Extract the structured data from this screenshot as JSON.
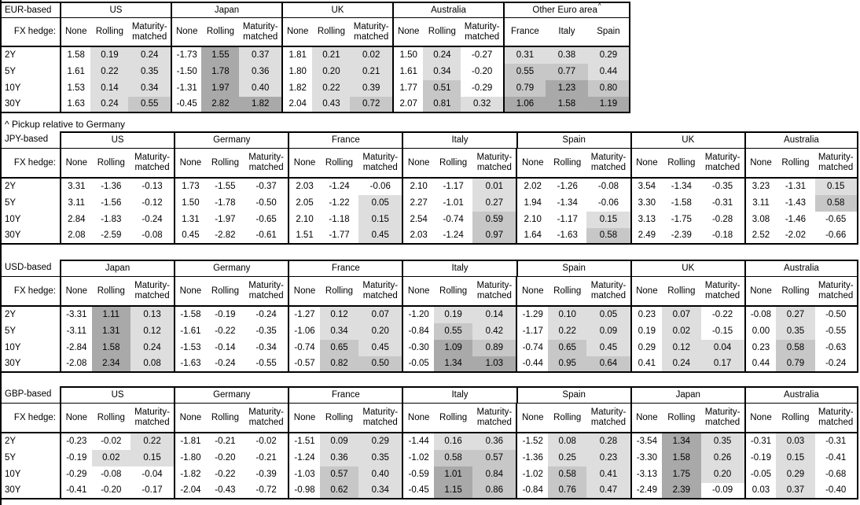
{
  "page": {
    "note": "^ Pickup relative to Germany"
  },
  "labels": {
    "fx_hedge": "FX hedge:",
    "hedge_types": [
      "None",
      "Rolling",
      "Maturity-matched"
    ],
    "tenors": [
      "2Y",
      "5Y",
      "10Y",
      "30Y"
    ]
  },
  "colors": {
    "background": "#ffffff",
    "border": "#000000",
    "shade_light": "#dedede",
    "shade_medium": "#c7c7c7",
    "shade_dark": "#a9a9a9"
  },
  "tables": [
    {
      "base": "EUR-based",
      "groups": [
        {
          "name": "US",
          "rows": [
            [
              "1.58",
              "0.19",
              "0.24"
            ],
            [
              "1.61",
              "0.22",
              "0.35"
            ],
            [
              "1.53",
              "0.14",
              "0.34"
            ],
            [
              "1.63",
              "0.24",
              "0.55"
            ]
          ]
        },
        {
          "name": "Japan",
          "rows": [
            [
              "-1.73",
              "1.55",
              "0.37"
            ],
            [
              "-1.50",
              "1.78",
              "0.36"
            ],
            [
              "-1.31",
              "1.97",
              "0.40"
            ],
            [
              "-0.45",
              "2.82",
              "1.82"
            ]
          ]
        },
        {
          "name": "UK",
          "rows": [
            [
              "1.81",
              "0.21",
              "0.02"
            ],
            [
              "1.80",
              "0.20",
              "0.21"
            ],
            [
              "1.82",
              "0.22",
              "0.39"
            ],
            [
              "2.04",
              "0.43",
              "0.72"
            ]
          ]
        },
        {
          "name": "Australia",
          "rows": [
            [
              "1.50",
              "0.24",
              "-0.27"
            ],
            [
              "1.61",
              "0.34",
              "-0.20"
            ],
            [
              "1.77",
              "0.51",
              "-0.29"
            ],
            [
              "2.07",
              "0.81",
              "0.32"
            ]
          ]
        },
        {
          "name": "Other Euro area",
          "sup": "^",
          "subheaders": [
            "France",
            "Italy",
            "Spain"
          ],
          "shade_all": true,
          "rows": [
            [
              "0.31",
              "0.38",
              "0.29"
            ],
            [
              "0.55",
              "0.77",
              "0.44"
            ],
            [
              "0.79",
              "1.23",
              "0.80"
            ],
            [
              "1.06",
              "1.58",
              "1.19"
            ]
          ]
        }
      ]
    },
    {
      "base": "JPY-based",
      "groups": [
        {
          "name": "US",
          "rows": [
            [
              "3.31",
              "-1.36",
              "-0.13"
            ],
            [
              "3.11",
              "-1.56",
              "-0.12"
            ],
            [
              "2.84",
              "-1.83",
              "-0.24"
            ],
            [
              "2.08",
              "-2.59",
              "-0.08"
            ]
          ]
        },
        {
          "name": "Germany",
          "rows": [
            [
              "1.73",
              "-1.55",
              "-0.37"
            ],
            [
              "1.50",
              "-1.78",
              "-0.50"
            ],
            [
              "1.31",
              "-1.97",
              "-0.65"
            ],
            [
              "0.45",
              "-2.82",
              "-0.61"
            ]
          ]
        },
        {
          "name": "France",
          "rows": [
            [
              "2.03",
              "-1.24",
              "-0.06"
            ],
            [
              "2.05",
              "-1.22",
              "0.05"
            ],
            [
              "2.10",
              "-1.18",
              "0.15"
            ],
            [
              "1.51",
              "-1.77",
              "0.45"
            ]
          ]
        },
        {
          "name": "Italy",
          "rows": [
            [
              "2.10",
              "-1.17",
              "0.01"
            ],
            [
              "2.27",
              "-1.01",
              "0.27"
            ],
            [
              "2.54",
              "-0.74",
              "0.59"
            ],
            [
              "2.03",
              "-1.24",
              "0.97"
            ]
          ]
        },
        {
          "name": "Spain",
          "rows": [
            [
              "2.02",
              "-1.26",
              "-0.08"
            ],
            [
              "1.94",
              "-1.34",
              "-0.06"
            ],
            [
              "2.10",
              "-1.17",
              "0.15"
            ],
            [
              "1.64",
              "-1.63",
              "0.58"
            ]
          ]
        },
        {
          "name": "UK",
          "rows": [
            [
              "3.54",
              "-1.34",
              "-0.35"
            ],
            [
              "3.30",
              "-1.58",
              "-0.31"
            ],
            [
              "3.13",
              "-1.75",
              "-0.28"
            ],
            [
              "2.49",
              "-2.39",
              "-0.18"
            ]
          ]
        },
        {
          "name": "Australia",
          "rows": [
            [
              "3.23",
              "-1.31",
              "0.15"
            ],
            [
              "3.11",
              "-1.43",
              "0.58"
            ],
            [
              "3.08",
              "-1.46",
              "-0.65"
            ],
            [
              "2.52",
              "-2.02",
              "-0.66"
            ]
          ]
        }
      ]
    },
    {
      "base": "USD-based",
      "groups": [
        {
          "name": "Japan",
          "rows": [
            [
              "-3.31",
              "1.11",
              "0.13"
            ],
            [
              "-3.11",
              "1.31",
              "0.12"
            ],
            [
              "-2.84",
              "1.58",
              "0.24"
            ],
            [
              "-2.08",
              "2.34",
              "0.08"
            ]
          ]
        },
        {
          "name": "Germany",
          "rows": [
            [
              "-1.58",
              "-0.19",
              "-0.24"
            ],
            [
              "-1.61",
              "-0.22",
              "-0.35"
            ],
            [
              "-1.53",
              "-0.14",
              "-0.34"
            ],
            [
              "-1.63",
              "-0.24",
              "-0.55"
            ]
          ]
        },
        {
          "name": "France",
          "rows": [
            [
              "-1.27",
              "0.12",
              "0.07"
            ],
            [
              "-1.06",
              "0.34",
              "0.20"
            ],
            [
              "-0.74",
              "0.65",
              "0.45"
            ],
            [
              "-0.57",
              "0.82",
              "0.50"
            ]
          ]
        },
        {
          "name": "Italy",
          "rows": [
            [
              "-1.20",
              "0.19",
              "0.14"
            ],
            [
              "-0.84",
              "0.55",
              "0.42"
            ],
            [
              "-0.30",
              "1.09",
              "0.89"
            ],
            [
              "-0.05",
              "1.34",
              "1.03"
            ]
          ]
        },
        {
          "name": "Spain",
          "rows": [
            [
              "-1.29",
              "0.10",
              "0.05"
            ],
            [
              "-1.17",
              "0.22",
              "0.09"
            ],
            [
              "-0.74",
              "0.65",
              "0.45"
            ],
            [
              "-0.44",
              "0.95",
              "0.64"
            ]
          ]
        },
        {
          "name": "UK",
          "rows": [
            [
              "0.23",
              "0.07",
              "-0.22"
            ],
            [
              "0.19",
              "0.02",
              "-0.15"
            ],
            [
              "0.29",
              "0.12",
              "0.04"
            ],
            [
              "0.41",
              "0.24",
              "0.17"
            ]
          ]
        },
        {
          "name": "Australia",
          "rows": [
            [
              "-0.08",
              "0.27",
              "-0.50"
            ],
            [
              "0.00",
              "0.35",
              "-0.55"
            ],
            [
              "0.23",
              "0.58",
              "-0.63"
            ],
            [
              "0.44",
              "0.79",
              "-0.24"
            ]
          ]
        }
      ]
    },
    {
      "base": "GBP-based",
      "groups": [
        {
          "name": "US",
          "rows": [
            [
              "-0.23",
              "-0.02",
              "0.22"
            ],
            [
              "-0.19",
              "0.02",
              "0.15"
            ],
            [
              "-0.29",
              "-0.08",
              "-0.04"
            ],
            [
              "-0.41",
              "-0.20",
              "-0.17"
            ]
          ]
        },
        {
          "name": "Germany",
          "rows": [
            [
              "-1.81",
              "-0.21",
              "-0.02"
            ],
            [
              "-1.80",
              "-0.20",
              "-0.21"
            ],
            [
              "-1.82",
              "-0.22",
              "-0.39"
            ],
            [
              "-2.04",
              "-0.43",
              "-0.72"
            ]
          ]
        },
        {
          "name": "France",
          "rows": [
            [
              "-1.51",
              "0.09",
              "0.29"
            ],
            [
              "-1.24",
              "0.36",
              "0.35"
            ],
            [
              "-1.03",
              "0.57",
              "0.40"
            ],
            [
              "-0.98",
              "0.62",
              "0.34"
            ]
          ]
        },
        {
          "name": "Italy",
          "rows": [
            [
              "-1.44",
              "0.16",
              "0.36"
            ],
            [
              "-1.02",
              "0.58",
              "0.57"
            ],
            [
              "-0.59",
              "1.01",
              "0.84"
            ],
            [
              "-0.45",
              "1.15",
              "0.86"
            ]
          ]
        },
        {
          "name": "Spain",
          "rows": [
            [
              "-1.52",
              "0.08",
              "0.28"
            ],
            [
              "-1.36",
              "0.25",
              "0.23"
            ],
            [
              "-1.02",
              "0.58",
              "0.41"
            ],
            [
              "-0.84",
              "0.76",
              "0.47"
            ]
          ]
        },
        {
          "name": "Japan",
          "rows": [
            [
              "-3.54",
              "1.34",
              "0.35"
            ],
            [
              "-3.30",
              "1.58",
              "0.26"
            ],
            [
              "-3.13",
              "1.75",
              "0.20"
            ],
            [
              "-2.49",
              "2.39",
              "-0.09"
            ]
          ]
        },
        {
          "name": "Australia",
          "rows": [
            [
              "-0.31",
              "0.03",
              "-0.31"
            ],
            [
              "-0.19",
              "0.15",
              "-0.41"
            ],
            [
              "-0.05",
              "0.29",
              "-0.68"
            ],
            [
              "0.03",
              "0.37",
              "-0.40"
            ]
          ]
        }
      ]
    }
  ]
}
